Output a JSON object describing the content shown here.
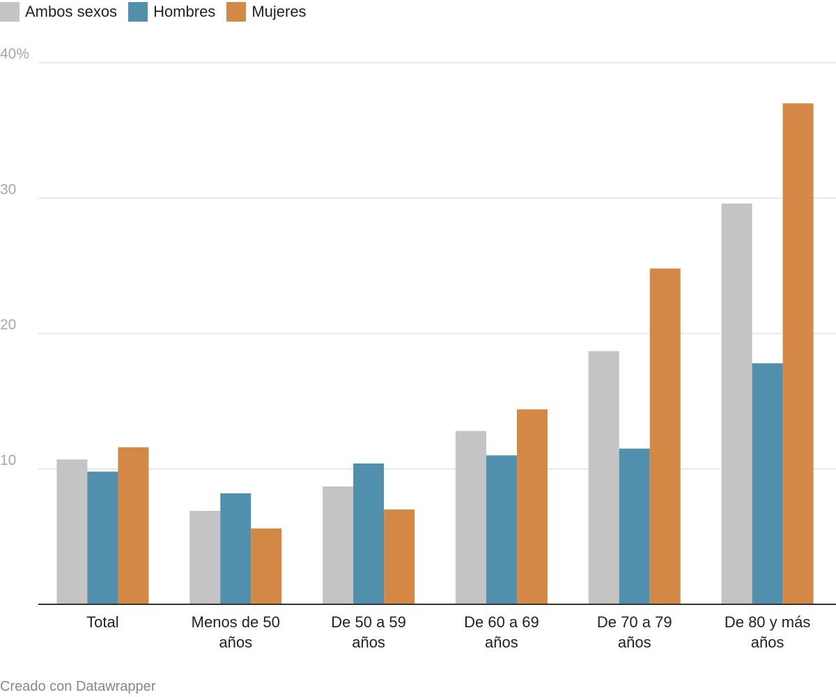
{
  "legend": [
    {
      "name": "Ambos sexos",
      "color": "#c4c4c4"
    },
    {
      "name": "Hombres",
      "color": "#5190ad"
    },
    {
      "name": "Mujeres",
      "color": "#d48846"
    }
  ],
  "chart_data": {
    "type": "bar",
    "categories": [
      [
        "Total"
      ],
      [
        "Menos de 50",
        "años"
      ],
      [
        "De 50 a 59",
        "años"
      ],
      [
        "De 60 a 69",
        "años"
      ],
      [
        "De 70 a 79",
        "años"
      ],
      [
        "De 80 y más",
        "años"
      ]
    ],
    "series": [
      {
        "name": "Ambos sexos",
        "color": "#c4c4c4",
        "values": [
          10.7,
          6.9,
          8.7,
          12.8,
          18.7,
          29.6
        ]
      },
      {
        "name": "Hombres",
        "color": "#5190ad",
        "values": [
          9.8,
          8.2,
          10.4,
          11.0,
          11.5,
          17.8
        ]
      },
      {
        "name": "Mujeres",
        "color": "#d48846",
        "values": [
          11.6,
          5.6,
          7.0,
          14.4,
          24.8,
          37.0
        ]
      }
    ],
    "ylim": [
      0,
      40
    ],
    "yticks": [
      {
        "value": 10,
        "label": "10"
      },
      {
        "value": 20,
        "label": "20"
      },
      {
        "value": 30,
        "label": "30"
      },
      {
        "value": 40,
        "label": "40%"
      }
    ],
    "grid": true,
    "legend_position": "top-left"
  },
  "credit": "Creado con Datawrapper"
}
